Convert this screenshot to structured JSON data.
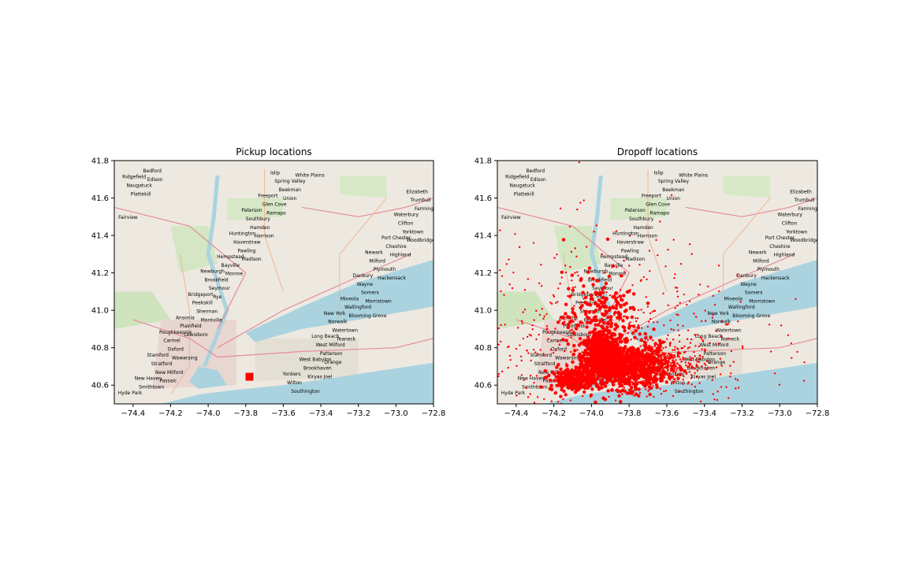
{
  "chart_data": [
    {
      "type": "scatter",
      "title": "Pickup locations",
      "xlabel": "",
      "ylabel": "",
      "xlim": [
        -74.5,
        -72.8
      ],
      "ylim": [
        40.5,
        41.8
      ],
      "xticks": [
        -74.4,
        -74.2,
        -74.0,
        -73.8,
        -73.6,
        -73.4,
        -73.2,
        -73.0,
        -72.8
      ],
      "yticks": [
        40.6,
        40.8,
        41.0,
        41.2,
        41.4,
        41.6,
        41.8
      ],
      "xtick_labels": [
        "−74.4",
        "−74.2",
        "−74.0",
        "−73.8",
        "−73.6",
        "−73.4",
        "−73.2",
        "−73.0",
        "−72.8"
      ],
      "ytick_labels": [
        "40.6",
        "40.8",
        "41.0",
        "41.2",
        "41.4",
        "41.6",
        "41.8"
      ],
      "background": "map",
      "marker_color": "#ff0000",
      "points": [
        {
          "x": -73.78,
          "y": 40.645
        }
      ]
    },
    {
      "type": "scatter",
      "title": "Dropoff locations",
      "xlabel": "",
      "ylabel": "",
      "xlim": [
        -74.5,
        -72.8
      ],
      "ylim": [
        40.5,
        41.8
      ],
      "xticks": [
        -74.4,
        -74.2,
        -74.0,
        -73.8,
        -73.6,
        -73.4,
        -73.2,
        -73.0,
        -72.8
      ],
      "yticks": [
        40.6,
        40.8,
        41.0,
        41.2,
        41.4,
        41.6,
        41.8
      ],
      "xtick_labels": [
        "−74.4",
        "−74.2",
        "−74.0",
        "−73.8",
        "−73.6",
        "−73.4",
        "−73.2",
        "−73.0",
        "−72.8"
      ],
      "ytick_labels": [
        "40.6",
        "40.8",
        "41.0",
        "41.2",
        "41.4",
        "41.6",
        "41.8"
      ],
      "background": "map",
      "marker_color": "#ff0000",
      "clusters": [
        {
          "x": -73.95,
          "y": 40.75,
          "sx": 0.05,
          "sy": 0.06,
          "n": 700
        },
        {
          "x": -73.8,
          "y": 40.7,
          "sx": 0.1,
          "sy": 0.06,
          "n": 700
        },
        {
          "x": -73.65,
          "y": 40.72,
          "sx": 0.12,
          "sy": 0.06,
          "n": 450
        },
        {
          "x": -74.1,
          "y": 40.63,
          "sx": 0.06,
          "sy": 0.03,
          "n": 250
        },
        {
          "x": -73.95,
          "y": 40.95,
          "sx": 0.1,
          "sy": 0.12,
          "n": 250
        },
        {
          "x": -73.9,
          "y": 40.8,
          "sx": 0.4,
          "sy": 0.3,
          "n": 600
        }
      ]
    }
  ],
  "map_labels": [
    "Hyde Park",
    "Poughkeepsie",
    "Newburgh",
    "Paterson",
    "Yonkers",
    "New York",
    "Newark",
    "Elizabeth",
    "Stamford",
    "Bridgeport",
    "Huntington",
    "Islip",
    "Long Beach",
    "Danbury",
    "Waterbury",
    "New Haven",
    "Ansonia",
    "Hempstead",
    "Freeport",
    "West Babylon",
    "Mineola",
    "Port Chester",
    "Ridgefield",
    "Carmel",
    "Brookfield",
    "Southbury",
    "Wilton",
    "Norwalk",
    "Milford",
    "Trumbull",
    "Stratford",
    "Peekskill",
    "Haverstraw",
    "Spring Valley",
    "West Milford",
    "Wayne",
    "Clifton",
    "Smithtown",
    "Plainfield",
    "Bayville",
    "Glen Cove",
    "Brookhaven",
    "Wallingford",
    "Cheshire",
    "Naugatuck",
    "Oxford",
    "Seymour",
    "Hamden",
    "Southington",
    "Watertown",
    "Plymouth",
    "Farmington",
    "New Milford",
    "Sherman",
    "Pawling",
    "Beekman",
    "Patterson",
    "Somers",
    "Yorktown",
    "Bedford",
    "Lewisboro",
    "Monroe",
    "Ramapo",
    "Kiryas Joel",
    "Blooming Grove",
    "Highland",
    "Plattekill",
    "Wawarsing",
    "Rye",
    "Harrison",
    "White Plains",
    "Teaneck",
    "Hackensack",
    "Fairview",
    "Passaic",
    "Montville",
    "Madison",
    "Union",
    "Orange",
    "Morristown",
    "Woodbridge",
    "Edison"
  ]
}
